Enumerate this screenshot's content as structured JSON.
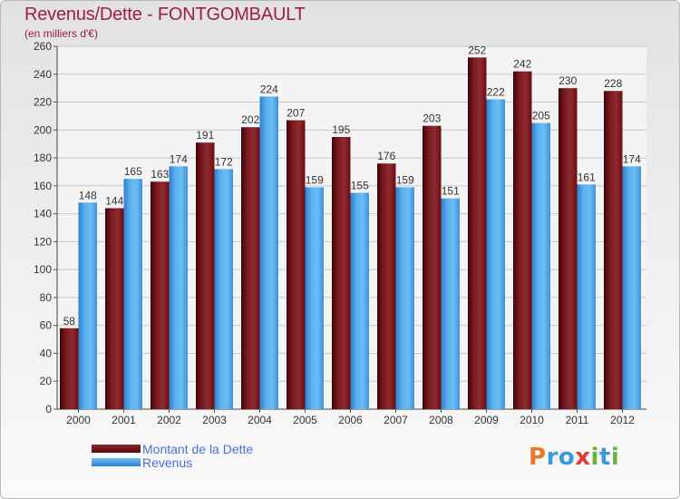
{
  "title": "Revenus/Dette - FONTGOMBAULT",
  "subtitle": "(en milliers d'€)",
  "logo_text": "Proxiti",
  "colors": {
    "debt": "#6b0d12",
    "revenue": "#4aa2e6",
    "axis_text": "#333333",
    "grid": "#c8c8c8"
  },
  "chart_data": {
    "type": "bar",
    "title": "Revenus/Dette - FONTGOMBAULT",
    "subtitle": "(en milliers d'€)",
    "categories": [
      "2000",
      "2001",
      "2002",
      "2003",
      "2004",
      "2005",
      "2006",
      "2007",
      "2008",
      "2009",
      "2010",
      "2011",
      "2012"
    ],
    "series": [
      {
        "name": "Montant de la Dette",
        "color": "#6b0d12",
        "values": [
          58,
          144,
          163,
          191,
          202,
          207,
          195,
          176,
          203,
          252,
          242,
          230,
          228
        ]
      },
      {
        "name": "Revenus",
        "color": "#4aa2e6",
        "values": [
          148,
          165,
          174,
          172,
          224,
          159,
          155,
          159,
          151,
          222,
          205,
          161,
          174
        ]
      }
    ],
    "ylim": [
      0,
      260
    ],
    "yticks": [
      0,
      20,
      40,
      60,
      80,
      100,
      120,
      140,
      160,
      180,
      200,
      220,
      240,
      260
    ],
    "grid": true,
    "legend_position": "bottom-left"
  }
}
